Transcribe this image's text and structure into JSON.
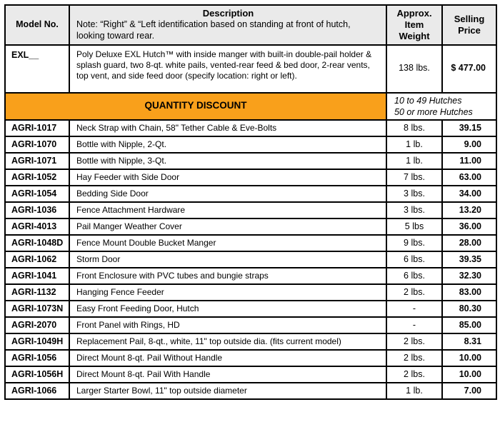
{
  "colors": {
    "banner_bg": "#F9A01B",
    "header_bg": "#EAEAEA",
    "border": "#000000",
    "text": "#000000"
  },
  "table": {
    "header": {
      "model_no": "Model No.",
      "description_title": "Description",
      "description_note": "Note: “Right” & “Left identification based on standing at front of hutch, looking toward rear.",
      "weight": "Approx. Item Weight",
      "price": "Selling Price"
    },
    "featured_row": {
      "model": "EXL__",
      "description": "Poly Deluxe EXL Hutch™ with inside manger with built-in double-pail holder & splash guard, two 8-qt. white pails, vented-rear feed & bed door, 2-rear vents, top vent, and side feed door (specify location: right or left).",
      "weight": "138 lbs.",
      "price": "$ 477.00"
    },
    "discount_banner": {
      "label": "QUANTITY DISCOUNT",
      "tiers": [
        "10 to 49 Hutches",
        "50 or more Hutches"
      ]
    },
    "items": [
      {
        "model": "AGRI-1017",
        "description": "Neck Strap with Chain, 58\" Tether Cable & Eve-Bolts",
        "weight": "8 lbs.",
        "price": "39.15"
      },
      {
        "model": "AGRI-1070",
        "description": "Bottle with Nipple, 2-Qt.",
        "weight": "1 lb.",
        "price": "9.00"
      },
      {
        "model": "AGRI-1071",
        "description": "Bottle with Nipple, 3-Qt.",
        "weight": "1 lb.",
        "price": "11.00"
      },
      {
        "model": "AGRI-1052",
        "description": "Hay Feeder with Side Door",
        "weight": "7 lbs.",
        "price": "63.00"
      },
      {
        "model": "AGRI-1054",
        "description": "Bedding Side Door",
        "weight": "3 lbs.",
        "price": "34.00"
      },
      {
        "model": "AGRI-1036",
        "description": "Fence Attachment Hardware",
        "weight": "3 lbs.",
        "price": "13.20"
      },
      {
        "model": "AGRI-4013",
        "description": "Pail Manger Weather Cover",
        "weight": "5 lbs",
        "price": "36.00"
      },
      {
        "model": "AGRI-1048D",
        "description": "Fence Mount Double Bucket Manger",
        "weight": "9 lbs.",
        "price": "28.00"
      },
      {
        "model": "AGRI-1062",
        "description": "Storm Door",
        "weight": "6 lbs.",
        "price": "39.35"
      },
      {
        "model": "AGRI-1041",
        "description": "Front Enclosure with PVC tubes and bungie straps",
        "weight": "6 lbs.",
        "price": "32.30"
      },
      {
        "model": "AGRI-1132",
        "description": "Hanging Fence Feeder",
        "weight": "2 lbs.",
        "price": "83.00"
      },
      {
        "model": "AGRI-1073N",
        "description": "Easy Front Feeding Door, Hutch",
        "weight": "-",
        "price": "80.30"
      },
      {
        "model": "AGRI-2070",
        "description": "Front Panel with Rings, HD",
        "weight": "-",
        "price": "85.00"
      },
      {
        "model": "AGRI-1049H",
        "description": "Replacement Pail, 8-qt., white, 11\" top outside dia. (fits current model)",
        "weight": "2 lbs.",
        "price": "8.31"
      },
      {
        "model": "AGRI-1056",
        "description": "Direct Mount 8-qt. Pail Without Handle",
        "weight": "2 lbs.",
        "price": "10.00"
      },
      {
        "model": "AGRI-1056H",
        "description": "Direct Mount 8-qt. Pail With Handle",
        "weight": "2 lbs.",
        "price": "10.00"
      },
      {
        "model": "AGRI-1066",
        "description": "Larger Starter Bowl, 11\" top outside diameter",
        "weight": "1 lb.",
        "price": "7.00"
      }
    ]
  }
}
